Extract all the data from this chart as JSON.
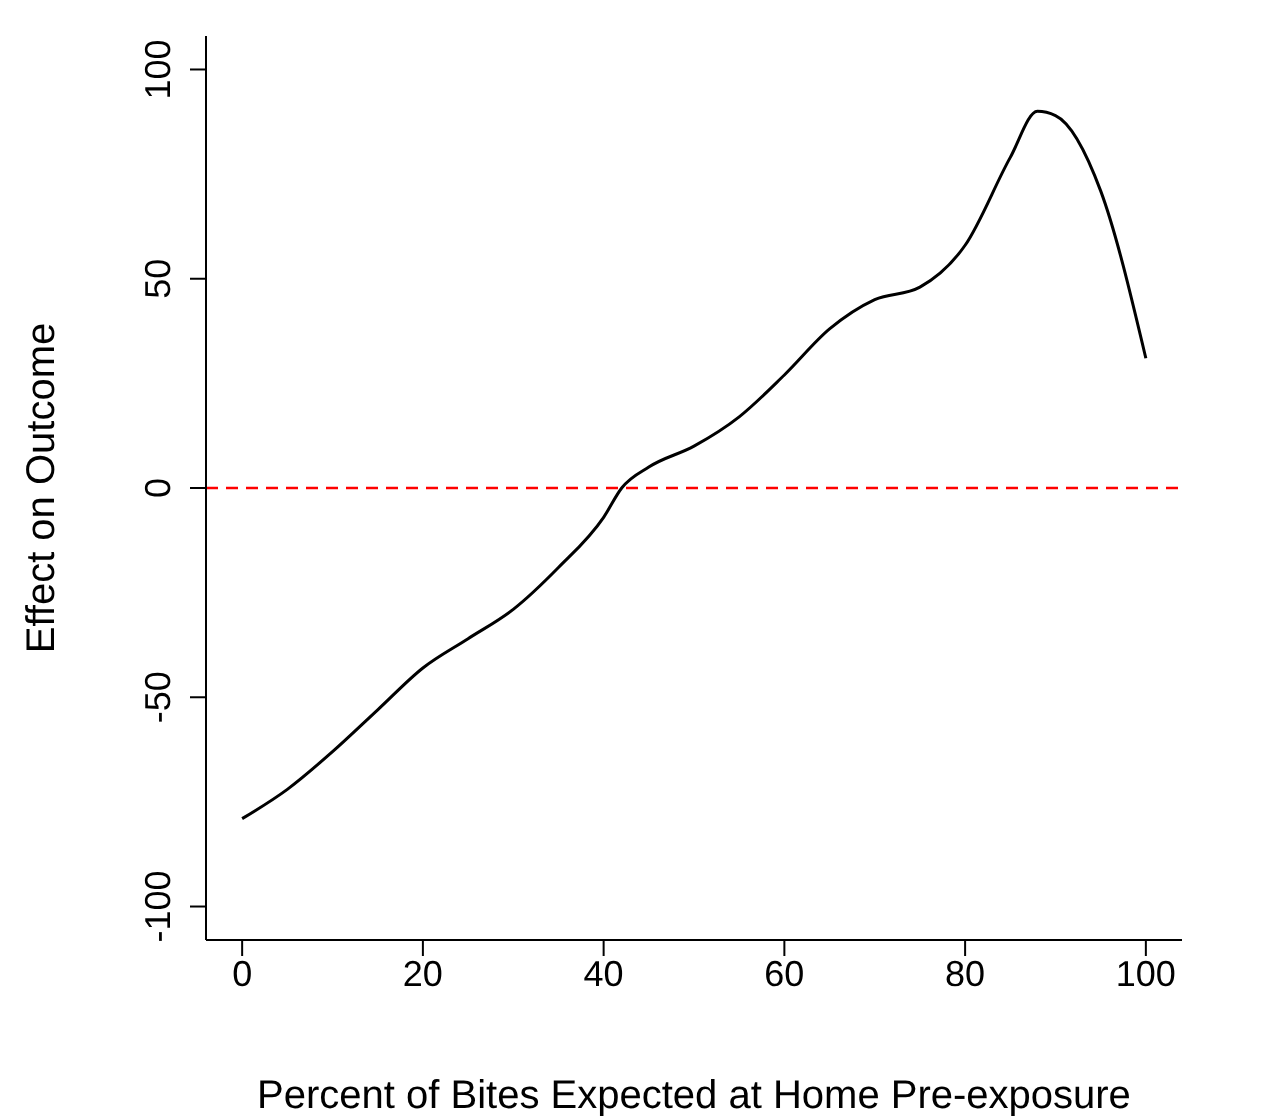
{
  "chart_data": {
    "type": "line",
    "xlabel": "Percent of Bites Expected at Home Pre-exposure",
    "ylabel": "Effect on Outcome",
    "x": [
      0,
      5,
      10,
      15,
      20,
      25,
      30,
      35,
      40,
      42,
      45,
      50,
      55,
      60,
      65,
      70,
      75,
      80,
      85,
      88,
      90,
      95,
      100
    ],
    "series": [
      {
        "color": "#000000",
        "values": [
          -79,
          -72,
          -63,
          -53,
          -43,
          -36,
          -29,
          -19,
          -7,
          0,
          5,
          10,
          17,
          27,
          38,
          45,
          48,
          58,
          79,
          90,
          89,
          71,
          31
        ]
      }
    ],
    "xlim": [
      -4,
      104
    ],
    "xticks": [
      0,
      20,
      40,
      60,
      80,
      100
    ],
    "ylim": [
      -108,
      108
    ],
    "yticks": [
      -100,
      -50,
      0,
      50,
      100
    ],
    "ref_lines": [
      {
        "axis": "y",
        "value": 0,
        "color": "#ff0000",
        "line_style": "dashed"
      }
    ],
    "grid": false,
    "legend": false,
    "marker": "none",
    "line_style": "solid"
  }
}
